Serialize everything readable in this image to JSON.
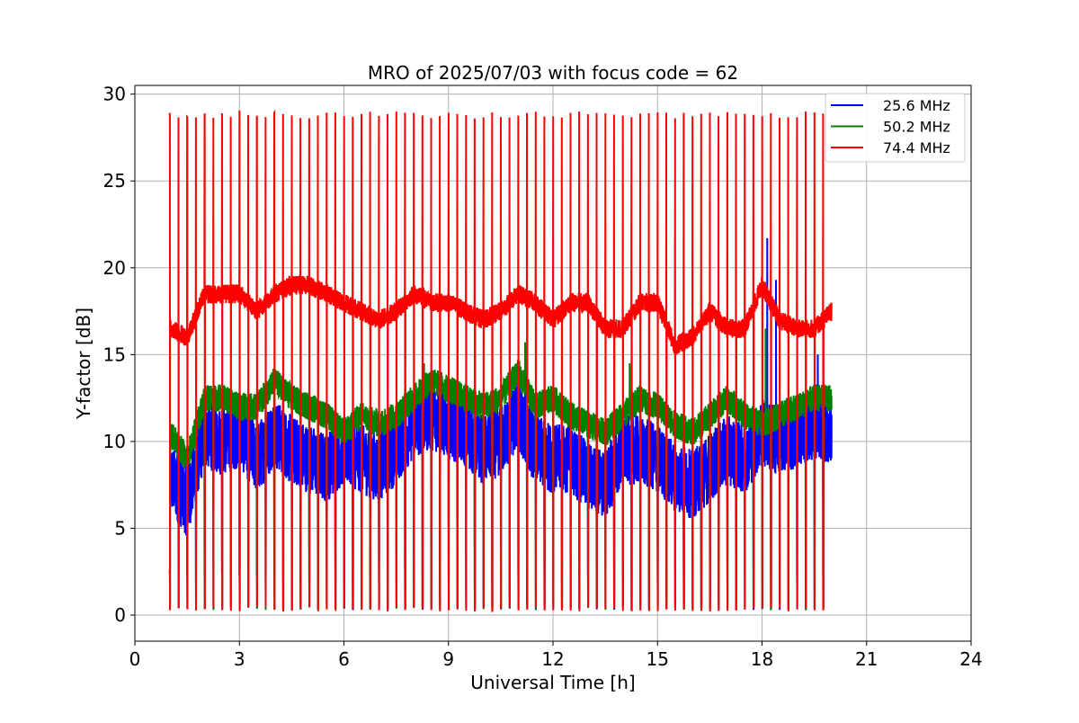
{
  "chart_data": {
    "type": "line",
    "title": "MRO of 2025/07/03 with focus code = 62",
    "xlabel": "Universal Time [h]",
    "ylabel": "Y-factor [dB]",
    "xlim": [
      0,
      24
    ],
    "ylim": [
      -1.5,
      30.5
    ],
    "xticks": [
      0,
      3,
      6,
      9,
      12,
      15,
      18,
      21,
      24
    ],
    "yticks": [
      0,
      5,
      10,
      15,
      20,
      25,
      30
    ],
    "grid": true,
    "legend_position": "top-right",
    "x_start": 1.0,
    "x_end": 20.0,
    "series": [
      {
        "name": "25.6 MHz",
        "color": "#0000ff",
        "baseline": [
          [
            1.0,
            8.0
          ],
          [
            1.5,
            6.5
          ],
          [
            2.0,
            10.5
          ],
          [
            2.5,
            10.0
          ],
          [
            3.0,
            10.5
          ],
          [
            3.5,
            9.0
          ],
          [
            4.0,
            10.5
          ],
          [
            4.5,
            9.5
          ],
          [
            5.0,
            9.0
          ],
          [
            5.5,
            8.5
          ],
          [
            6.0,
            9.5
          ],
          [
            6.5,
            9.0
          ],
          [
            7.0,
            8.5
          ],
          [
            7.5,
            9.5
          ],
          [
            8.0,
            11.0
          ],
          [
            8.5,
            11.5
          ],
          [
            9.0,
            11.0
          ],
          [
            9.5,
            10.5
          ],
          [
            10.0,
            9.5
          ],
          [
            10.5,
            10.0
          ],
          [
            11.0,
            11.5
          ],
          [
            11.5,
            9.5
          ],
          [
            12.0,
            9.0
          ],
          [
            12.5,
            9.0
          ],
          [
            13.0,
            8.0
          ],
          [
            13.5,
            7.5
          ],
          [
            14.0,
            9.5
          ],
          [
            14.5,
            9.5
          ],
          [
            15.0,
            9.0
          ],
          [
            15.5,
            8.0
          ],
          [
            16.0,
            7.5
          ],
          [
            16.5,
            8.5
          ],
          [
            17.0,
            9.5
          ],
          [
            17.5,
            9.0
          ],
          [
            18.0,
            10.5
          ],
          [
            18.5,
            10.0
          ],
          [
            19.0,
            10.5
          ],
          [
            19.5,
            11.0
          ],
          [
            20.0,
            10.5
          ]
        ],
        "spikes": [
          [
            18.15,
            21.7
          ],
          [
            18.4,
            19.3
          ],
          [
            19.6,
            15.0
          ],
          [
            11.2,
            14.5
          ]
        ]
      },
      {
        "name": "50.2 MHz",
        "color": "#008000",
        "baseline": [
          [
            1.0,
            10.5
          ],
          [
            1.5,
            9.0
          ],
          [
            2.0,
            12.5
          ],
          [
            2.5,
            12.5
          ],
          [
            3.0,
            12.0
          ],
          [
            3.5,
            12.0
          ],
          [
            4.0,
            13.5
          ],
          [
            4.5,
            12.5
          ],
          [
            5.0,
            12.0
          ],
          [
            5.5,
            11.5
          ],
          [
            6.0,
            10.5
          ],
          [
            6.5,
            11.5
          ],
          [
            7.0,
            11.0
          ],
          [
            7.5,
            11.5
          ],
          [
            8.0,
            12.5
          ],
          [
            8.5,
            13.5
          ],
          [
            9.0,
            13.0
          ],
          [
            9.5,
            12.5
          ],
          [
            10.0,
            12.0
          ],
          [
            10.5,
            12.5
          ],
          [
            11.0,
            14.0
          ],
          [
            11.5,
            12.0
          ],
          [
            12.0,
            12.5
          ],
          [
            12.5,
            11.5
          ],
          [
            13.0,
            11.0
          ],
          [
            13.5,
            10.5
          ],
          [
            14.0,
            11.5
          ],
          [
            14.5,
            12.5
          ],
          [
            15.0,
            12.0
          ],
          [
            15.5,
            11.0
          ],
          [
            16.0,
            10.5
          ],
          [
            16.5,
            11.5
          ],
          [
            17.0,
            12.5
          ],
          [
            17.5,
            11.5
          ],
          [
            18.0,
            11.0
          ],
          [
            18.5,
            11.5
          ],
          [
            19.0,
            12.0
          ],
          [
            19.5,
            12.5
          ],
          [
            20.0,
            12.5
          ]
        ],
        "spikes": [
          [
            18.1,
            16.5
          ],
          [
            11.2,
            15.7
          ],
          [
            8.3,
            14.5
          ],
          [
            14.2,
            14.5
          ]
        ]
      },
      {
        "name": "74.4 MHz",
        "color": "#ff0000",
        "baseline": [
          [
            1.0,
            16.5
          ],
          [
            1.5,
            16.0
          ],
          [
            2.0,
            18.5
          ],
          [
            2.5,
            18.5
          ],
          [
            3.0,
            18.5
          ],
          [
            3.5,
            17.5
          ],
          [
            4.0,
            18.5
          ],
          [
            4.5,
            19.0
          ],
          [
            5.0,
            19.0
          ],
          [
            5.5,
            18.5
          ],
          [
            6.0,
            18.0
          ],
          [
            6.5,
            17.5
          ],
          [
            7.0,
            17.0
          ],
          [
            7.5,
            17.5
          ],
          [
            8.0,
            18.5
          ],
          [
            8.5,
            18.0
          ],
          [
            9.0,
            18.0
          ],
          [
            9.5,
            17.5
          ],
          [
            10.0,
            17.0
          ],
          [
            10.5,
            17.5
          ],
          [
            11.0,
            18.5
          ],
          [
            11.5,
            18.0
          ],
          [
            12.0,
            17.0
          ],
          [
            12.5,
            18.0
          ],
          [
            13.0,
            18.0
          ],
          [
            13.5,
            16.5
          ],
          [
            14.0,
            16.5
          ],
          [
            14.5,
            18.0
          ],
          [
            15.0,
            18.0
          ],
          [
            15.5,
            15.5
          ],
          [
            16.0,
            16.0
          ],
          [
            16.5,
            17.5
          ],
          [
            17.0,
            16.5
          ],
          [
            17.5,
            16.5
          ],
          [
            18.0,
            19.0
          ],
          [
            18.5,
            17.0
          ],
          [
            19.0,
            16.5
          ],
          [
            19.5,
            16.5
          ],
          [
            20.0,
            17.5
          ]
        ],
        "cal_period_h": 0.25,
        "cal_peak": 29.0,
        "cal_low": 0.2,
        "spikes": []
      }
    ]
  }
}
